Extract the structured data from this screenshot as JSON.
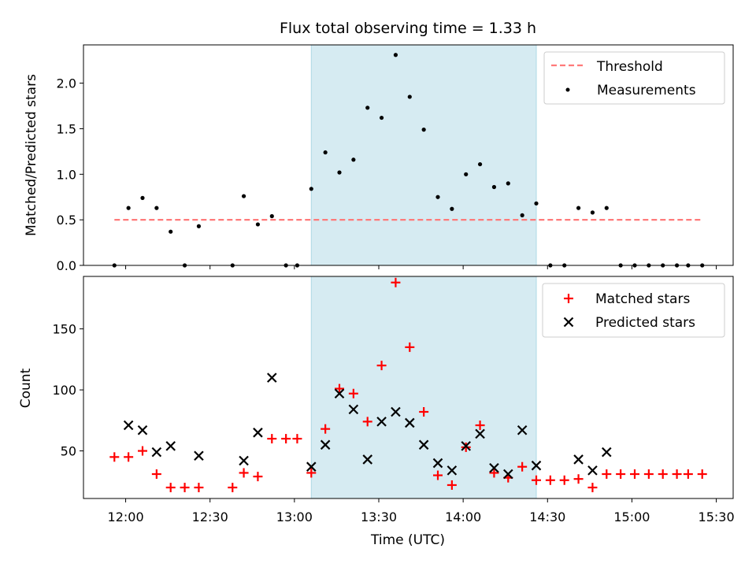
{
  "title": "Flux total observing time = 1.33 h",
  "colors": {
    "threshold": "#ff7a7a",
    "measurement": "#000000",
    "matched": "#ff0000",
    "predicted": "#000000",
    "shade": "#add8e6"
  },
  "chart_data": [
    {
      "type": "scatter",
      "ylabel": "Matched/Predicted stars",
      "ylim": [
        0,
        2.42
      ],
      "yticks": [
        0.0,
        0.5,
        1.0,
        1.5,
        2.0
      ],
      "ytick_labels": [
        "0.0",
        "0.5",
        "1.0",
        "1.5",
        "2.0"
      ],
      "grid": false,
      "legend_position": "top-right",
      "shaded_interval": [
        "13:06",
        "14:26"
      ],
      "threshold": {
        "name": "Threshold",
        "value": 0.5,
        "x_range": [
          "11:56",
          "15:25"
        ]
      },
      "series": [
        {
          "name": "Measurements",
          "x": [
            "11:56",
            "12:01",
            "12:06",
            "12:11",
            "12:16",
            "12:21",
            "12:26",
            "12:38",
            "12:42",
            "12:47",
            "12:52",
            "12:57",
            "13:01",
            "13:06",
            "13:11",
            "13:16",
            "13:21",
            "13:26",
            "13:31",
            "13:36",
            "13:41",
            "13:46",
            "13:51",
            "13:56",
            "14:01",
            "14:06",
            "14:11",
            "14:16",
            "14:21",
            "14:26",
            "14:31",
            "14:36",
            "14:41",
            "14:46",
            "14:51",
            "14:56",
            "15:01",
            "15:06",
            "15:11",
            "15:16",
            "15:20",
            "15:25"
          ],
          "values": [
            0.0,
            0.63,
            0.74,
            0.63,
            0.37,
            0.0,
            0.43,
            0.0,
            0.76,
            0.45,
            0.54,
            0.0,
            0.0,
            0.84,
            1.24,
            1.02,
            1.16,
            1.73,
            1.62,
            2.31,
            1.85,
            1.49,
            0.75,
            0.62,
            1.0,
            1.11,
            0.86,
            0.9,
            0.55,
            0.68,
            0.0,
            0.0,
            0.63,
            0.58,
            0.63,
            0.0,
            0.0,
            0.0,
            0.0,
            0.0,
            0.0,
            0.0
          ]
        }
      ]
    },
    {
      "type": "scatter",
      "xlabel": "Time (UTC)",
      "ylabel": "Count",
      "ylim": [
        11,
        193
      ],
      "yticks": [
        50,
        100,
        150
      ],
      "ytick_labels": [
        "50",
        "100",
        "150"
      ],
      "xlim": [
        "11:45",
        "15:36"
      ],
      "xticks": [
        "12:00",
        "12:30",
        "13:00",
        "13:30",
        "14:00",
        "14:30",
        "15:00",
        "15:30"
      ],
      "grid": false,
      "legend_position": "top-right",
      "shaded_interval": [
        "13:06",
        "14:26"
      ],
      "series": [
        {
          "name": "Matched stars",
          "marker": "plus",
          "x": [
            "11:56",
            "12:01",
            "12:06",
            "12:11",
            "12:16",
            "12:21",
            "12:26",
            "12:38",
            "12:42",
            "12:47",
            "12:52",
            "12:57",
            "13:01",
            "13:06",
            "13:11",
            "13:16",
            "13:21",
            "13:26",
            "13:31",
            "13:36",
            "13:41",
            "13:46",
            "13:51",
            "13:56",
            "14:01",
            "14:06",
            "14:11",
            "14:16",
            "14:21",
            "14:26",
            "14:31",
            "14:36",
            "14:41",
            "14:46",
            "14:51",
            "14:56",
            "15:01",
            "15:06",
            "15:11",
            "15:16",
            "15:20",
            "15:25"
          ],
          "values": [
            45,
            45,
            50,
            31,
            20,
            20,
            20,
            20,
            32,
            29,
            60,
            60,
            60,
            32,
            68,
            101,
            97,
            74,
            120,
            188,
            135,
            82,
            30,
            22,
            53,
            71,
            32,
            28,
            37,
            26,
            26,
            26,
            27,
            20,
            31,
            31,
            31,
            31,
            31,
            31,
            31,
            31
          ]
        },
        {
          "name": "Predicted stars",
          "marker": "x",
          "x": [
            "12:01",
            "12:06",
            "12:11",
            "12:16",
            "12:26",
            "12:42",
            "12:47",
            "12:52",
            "13:06",
            "13:11",
            "13:16",
            "13:21",
            "13:26",
            "13:31",
            "13:36",
            "13:41",
            "13:46",
            "13:51",
            "13:56",
            "14:01",
            "14:06",
            "14:11",
            "14:16",
            "14:21",
            "14:26",
            "14:41",
            "14:46",
            "14:51"
          ],
          "values": [
            71,
            67,
            49,
            54,
            46,
            42,
            65,
            110,
            37,
            55,
            97,
            84,
            43,
            74,
            82,
            73,
            55,
            40,
            34,
            54,
            64,
            36,
            31,
            67,
            38,
            43,
            34,
            49
          ]
        }
      ]
    }
  ]
}
